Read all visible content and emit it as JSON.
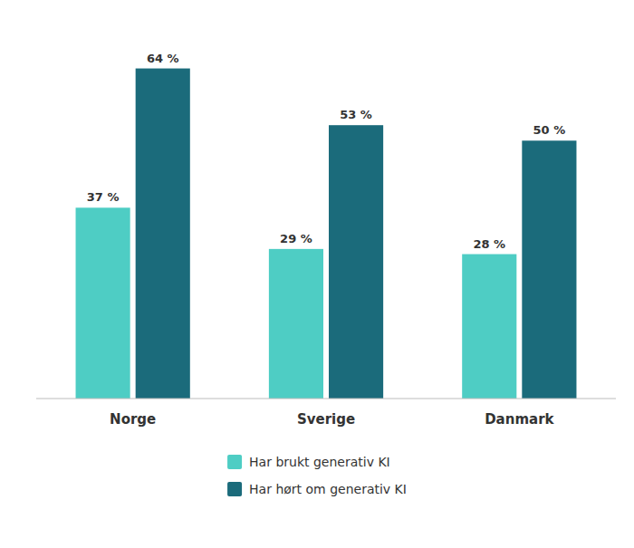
{
  "chart_data": {
    "type": "bar",
    "categories": [
      "Norge",
      "Sverige",
      "Danmark"
    ],
    "series": [
      {
        "name": "Har brukt generativ KI",
        "color": "#4ECDC4",
        "values": [
          37,
          29,
          28
        ],
        "value_labels": [
          "37 %",
          "29 %",
          "28 %"
        ]
      },
      {
        "name": "Har hørt om generativ KI",
        "color": "#1B6B7B",
        "values": [
          64,
          53,
          50
        ],
        "value_labels": [
          "64 %",
          "53 %",
          "50 %"
        ]
      }
    ],
    "ylim": [
      0,
      72
    ],
    "data_labels": true,
    "tick_labels": "x",
    "legend": "bottom"
  }
}
